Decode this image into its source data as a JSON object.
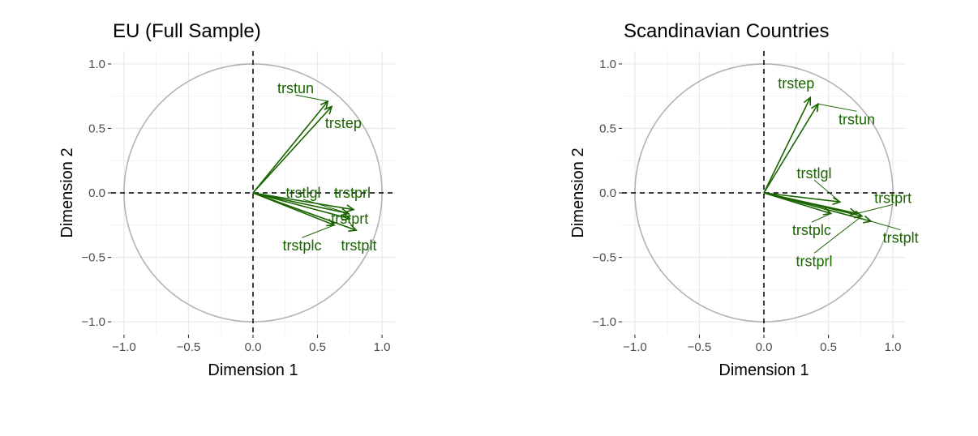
{
  "chart_data": [
    {
      "type": "scatter",
      "subtype": "pca-variable-correlation-circle",
      "title": "EU (Full Sample)",
      "xlabel": "Dimension 1",
      "ylabel": "Dimension 2",
      "xlim": [
        -1.1,
        1.1
      ],
      "ylim": [
        -1.1,
        1.1
      ],
      "xticks": [
        -1.0,
        -0.5,
        0.0,
        0.5,
        1.0
      ],
      "yticks": [
        -1.0,
        -0.5,
        0.0,
        0.5,
        1.0
      ],
      "xtick_labels": [
        "−1.0",
        "−0.5",
        "0.0",
        "0.5",
        "1.0"
      ],
      "ytick_labels": [
        "−1.0",
        "−0.5",
        "0.0",
        "0.5",
        "1.0"
      ],
      "grid": true,
      "legend": "none",
      "arrow_color": "#1a6400",
      "circle_color": "#b3b3b3",
      "variables": [
        {
          "name": "trstun",
          "x": 0.58,
          "y": 0.71,
          "label_x": 0.33,
          "label_y": 0.81
        },
        {
          "name": "trstep",
          "x": 0.61,
          "y": 0.67,
          "label_x": 0.7,
          "label_y": 0.54
        },
        {
          "name": "trstlgl",
          "x": 0.74,
          "y": -0.16,
          "label_x": 0.39,
          "label_y": 0.0
        },
        {
          "name": "trstprl",
          "x": 0.78,
          "y": -0.13,
          "label_x": 0.77,
          "label_y": 0.0
        },
        {
          "name": "trstprt",
          "x": 0.75,
          "y": -0.2,
          "label_x": 0.75,
          "label_y": -0.2
        },
        {
          "name": "trstplc",
          "x": 0.63,
          "y": -0.25,
          "label_x": 0.38,
          "label_y": -0.41
        },
        {
          "name": "trstplt",
          "x": 0.8,
          "y": -0.29,
          "label_x": 0.82,
          "label_y": -0.41
        }
      ]
    },
    {
      "type": "scatter",
      "subtype": "pca-variable-correlation-circle",
      "title": "Scandinavian Countries",
      "xlabel": "Dimension 1",
      "ylabel": "Dimension 2",
      "xlim": [
        -1.1,
        1.1
      ],
      "ylim": [
        -1.1,
        1.1
      ],
      "xticks": [
        -1.0,
        -0.5,
        0.0,
        0.5,
        1.0
      ],
      "yticks": [
        -1.0,
        -0.5,
        0.0,
        0.5,
        1.0
      ],
      "xtick_labels": [
        "−1.0",
        "−0.5",
        "0.0",
        "0.5",
        "1.0"
      ],
      "ytick_labels": [
        "−1.0",
        "−0.5",
        "0.0",
        "0.5",
        "1.0"
      ],
      "grid": true,
      "legend": "none",
      "arrow_color": "#1a6400",
      "circle_color": "#b3b3b3",
      "variables": [
        {
          "name": "trstep",
          "x": 0.36,
          "y": 0.74,
          "label_x": 0.25,
          "label_y": 0.85
        },
        {
          "name": "trstun",
          "x": 0.42,
          "y": 0.69,
          "label_x": 0.72,
          "label_y": 0.57
        },
        {
          "name": "trstlgl",
          "x": 0.59,
          "y": -0.07,
          "label_x": 0.39,
          "label_y": 0.15
        },
        {
          "name": "trstprt",
          "x": 0.72,
          "y": -0.16,
          "label_x": 1.0,
          "label_y": -0.04
        },
        {
          "name": "trstplc",
          "x": 0.52,
          "y": -0.16,
          "label_x": 0.37,
          "label_y": -0.29
        },
        {
          "name": "trstplt",
          "x": 0.83,
          "y": -0.22,
          "label_x": 1.06,
          "label_y": -0.35
        },
        {
          "name": "trstprl",
          "x": 0.76,
          "y": -0.18,
          "label_x": 0.39,
          "label_y": -0.53
        }
      ]
    }
  ]
}
